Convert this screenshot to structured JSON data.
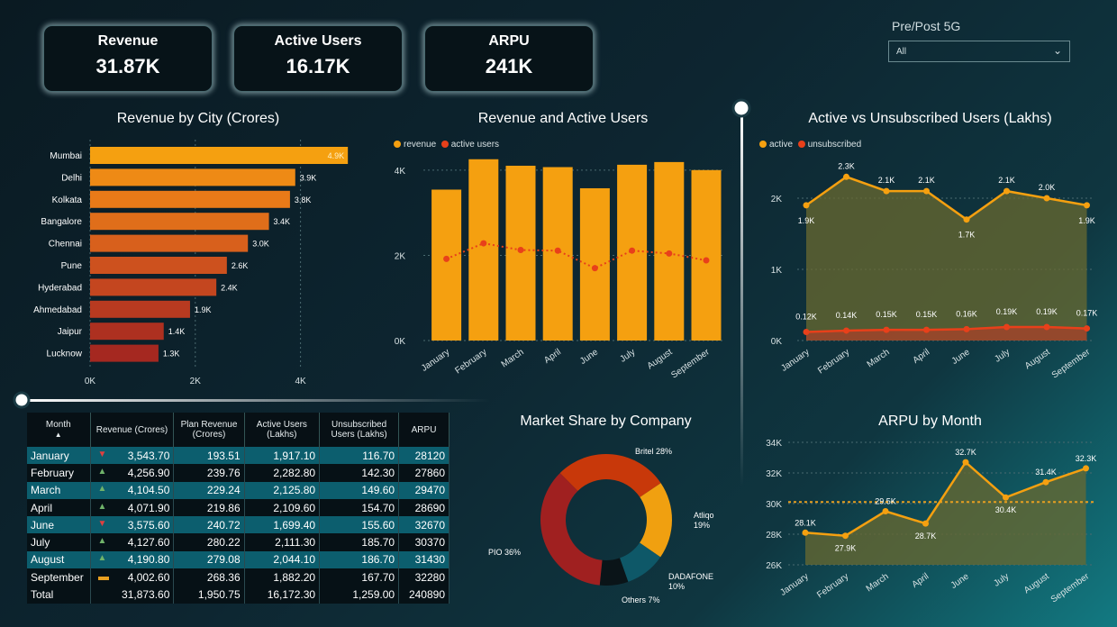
{
  "kpis": [
    {
      "title": "Revenue",
      "value": "31.87K"
    },
    {
      "title": "Active Users",
      "value": "16.17K"
    },
    {
      "title": "ARPU",
      "value": "241K"
    }
  ],
  "slicer": {
    "label": "Pre/Post 5G",
    "value": "All"
  },
  "titles": {
    "city": "Revenue by City (Crores)",
    "rev_users": "Revenue and Active Users",
    "active_unsub": "Active vs Unsubscribed Users (Lakhs)",
    "market": "Market Share by Company",
    "arpu": "ARPU by Month"
  },
  "legends": {
    "rev_users": [
      "revenue",
      "active users"
    ],
    "active_unsub": [
      "active",
      "unsubscribed"
    ]
  },
  "colors": {
    "orange": "#f5a010",
    "red": "#e8401a",
    "accent_bg": "#0c5e6e"
  },
  "chart_data": [
    {
      "type": "bar",
      "title": "Revenue by City (Crores)",
      "categories": [
        "Mumbai",
        "Delhi",
        "Kolkata",
        "Bangalore",
        "Chennai",
        "Pune",
        "Hyderabad",
        "Ahmedabad",
        "Jaipur",
        "Lucknow"
      ],
      "values": [
        4900,
        3900,
        3800,
        3400,
        3000,
        2600,
        2400,
        1900,
        1400,
        1300
      ],
      "labels": [
        "4.9K",
        "3.9K",
        "3.8K",
        "3.4K",
        "3.0K",
        "2.6K",
        "2.4K",
        "1.9K",
        "1.4K",
        "1.3K"
      ],
      "xticks": [
        "0K",
        "2K",
        "4K"
      ],
      "xlim": [
        0,
        5000
      ]
    },
    {
      "type": "bar",
      "title": "Revenue and Active Users",
      "categories": [
        "January",
        "February",
        "March",
        "April",
        "June",
        "July",
        "August",
        "September"
      ],
      "series": [
        {
          "name": "revenue",
          "values": [
            3543.7,
            4256.9,
            4104.5,
            4071.9,
            3575.6,
            4127.6,
            4190.8,
            4002.6
          ]
        },
        {
          "name": "active users",
          "values": [
            1917.1,
            2282.8,
            2125.8,
            2109.6,
            1699.4,
            2111.3,
            2044.1,
            1882.2
          ]
        }
      ],
      "yticks": [
        "0K",
        "2K",
        "4K"
      ],
      "ylim": [
        0,
        4400
      ]
    },
    {
      "type": "area",
      "title": "Active vs Unsubscribed Users (Lakhs)",
      "categories": [
        "January",
        "February",
        "March",
        "April",
        "June",
        "July",
        "August",
        "September"
      ],
      "series": [
        {
          "name": "active",
          "values": [
            1900,
            2300,
            2100,
            2100,
            1700,
            2100,
            2000,
            1900
          ],
          "labels": [
            "1.9K",
            "2.3K",
            "2.1K",
            "2.1K",
            "1.7K",
            "2.1K",
            "2.0K",
            "1.9K"
          ]
        },
        {
          "name": "unsubscribed",
          "values": [
            120,
            140,
            150,
            150,
            160,
            190,
            190,
            170
          ],
          "labels": [
            "0.12K",
            "0.14K",
            "0.15K",
            "0.15K",
            "0.16K",
            "0.19K",
            "0.19K",
            "0.17K"
          ]
        }
      ],
      "yticks": [
        "0K",
        "1K",
        "2K"
      ],
      "ylim": [
        0,
        2200
      ]
    },
    {
      "type": "pie",
      "title": "Market Share by Company",
      "slices": [
        {
          "name": "Britel",
          "value": 28,
          "label": "Britel 28%",
          "color": "#c8380a"
        },
        {
          "name": "Atliqo",
          "value": 19,
          "label": "Atliqo\n19%",
          "color": "#f0a010"
        },
        {
          "name": "DADAFONE",
          "value": 10,
          "label": "DADAFONE\n10%",
          "color": "#0e5868"
        },
        {
          "name": "Others",
          "value": 7,
          "label": "Others 7%",
          "color": "#0a1418"
        },
        {
          "name": "PIO",
          "value": 36,
          "label": "PIO 36%",
          "color": "#a02020"
        }
      ]
    },
    {
      "type": "area",
      "title": "ARPU by Month",
      "categories": [
        "January",
        "February",
        "March",
        "April",
        "June",
        "July",
        "August",
        "September"
      ],
      "values": [
        28.1,
        27.9,
        29.5,
        28.7,
        32.7,
        30.4,
        31.4,
        32.3
      ],
      "labels": [
        "28.1K",
        "27.9K",
        "29.5K",
        "28.7K",
        "32.7K",
        "30.4K",
        "31.4K",
        "32.3K"
      ],
      "yticks": [
        "26K",
        "28K",
        "30K",
        "32K",
        "34K"
      ],
      "ylim": [
        26,
        34
      ],
      "reference": 30.1
    }
  ],
  "table": {
    "headers": [
      "Month",
      "Revenue (Crores)",
      "Plan Revenue (Crores)",
      "Active Users (Lakhs)",
      "Unsubscribed Users (Lakhs)",
      "ARPU"
    ],
    "sort_indicator": "▲",
    "rows": [
      {
        "month": "January",
        "trend": "down",
        "revenue": "3,543.70",
        "plan": "193.51",
        "active": "1,917.10",
        "unsub": "116.70",
        "arpu": "28120"
      },
      {
        "month": "February",
        "trend": "up",
        "revenue": "4,256.90",
        "plan": "239.76",
        "active": "2,282.80",
        "unsub": "142.30",
        "arpu": "27860"
      },
      {
        "month": "March",
        "trend": "up",
        "revenue": "4,104.50",
        "plan": "229.24",
        "active": "2,125.80",
        "unsub": "149.60",
        "arpu": "29470"
      },
      {
        "month": "April",
        "trend": "up",
        "revenue": "4,071.90",
        "plan": "219.86",
        "active": "2,109.60",
        "unsub": "154.70",
        "arpu": "28690"
      },
      {
        "month": "June",
        "trend": "down",
        "revenue": "3,575.60",
        "plan": "240.72",
        "active": "1,699.40",
        "unsub": "155.60",
        "arpu": "32670"
      },
      {
        "month": "July",
        "trend": "up",
        "revenue": "4,127.60",
        "plan": "280.22",
        "active": "2,111.30",
        "unsub": "185.70",
        "arpu": "30370"
      },
      {
        "month": "August",
        "trend": "up",
        "revenue": "4,190.80",
        "plan": "279.08",
        "active": "2,044.10",
        "unsub": "186.70",
        "arpu": "31430"
      },
      {
        "month": "September",
        "trend": "flat",
        "revenue": "4,002.60",
        "plan": "268.36",
        "active": "1,882.20",
        "unsub": "167.70",
        "arpu": "32280"
      }
    ],
    "total": {
      "month": "Total",
      "revenue": "31,873.60",
      "plan": "1,950.75",
      "active": "16,172.30",
      "unsub": "1,259.00",
      "arpu": "240890"
    }
  }
}
